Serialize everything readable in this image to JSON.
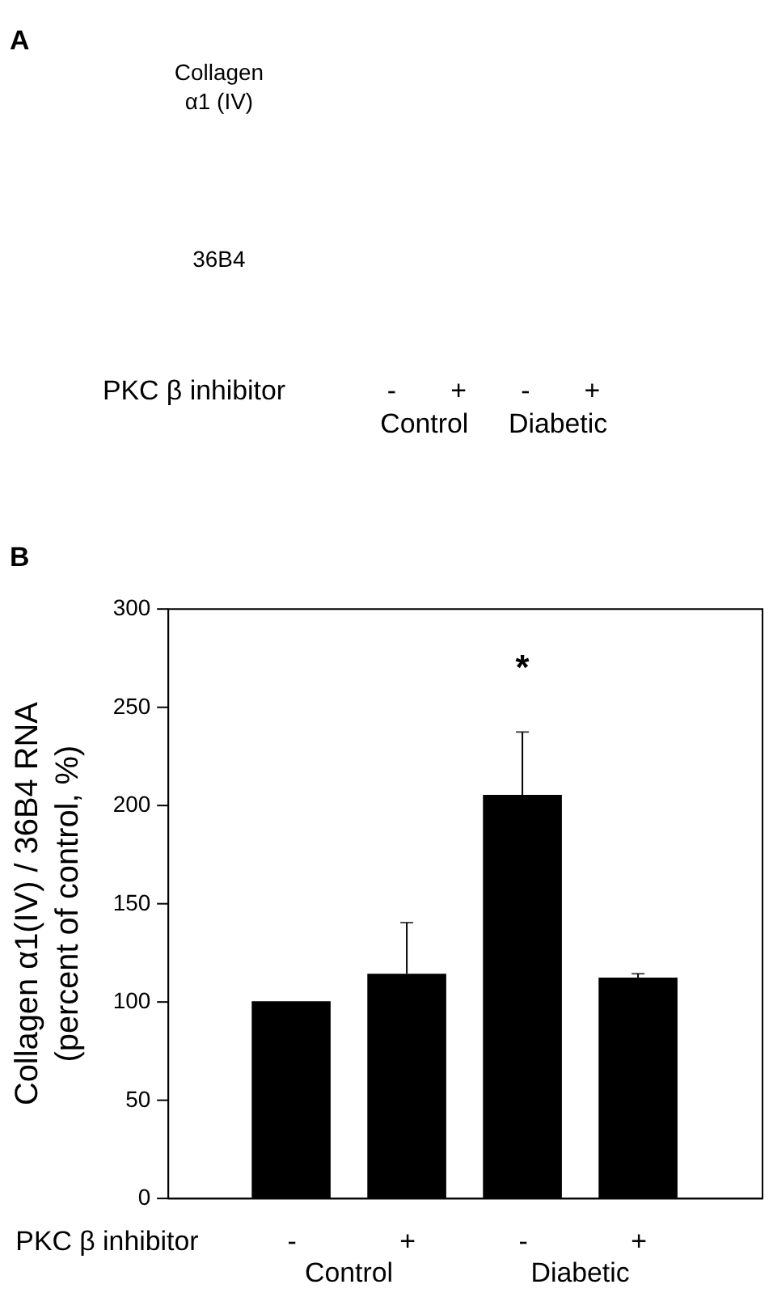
{
  "chart_data": [
    {
      "type": "other",
      "title": "A",
      "y_categories": [
        "Collagen\nα1 (IV)",
        "36B4"
      ],
      "categories": [
        "-",
        "+",
        "-",
        "+"
      ],
      "xlabel": "PKC β inhibitor",
      "annotations": [
        "Control",
        "Diabetic"
      ]
    },
    {
      "type": "bar",
      "title": "B",
      "categories": [
        "-",
        "+",
        "-",
        "+"
      ],
      "values": [
        100,
        114,
        205,
        112
      ],
      "color": "#000000",
      "errors": [
        null,
        [
          114,
          140
        ],
        [
          205,
          237
        ],
        [
          112,
          114
        ]
      ],
      "value_labels": [
        null,
        null,
        "*",
        null
      ],
      "ylabel": "Collagen α1(IV) / 36B4 RNA\n(percent of control, %)",
      "xlabel": "PKC β inhibitor",
      "annotations": [
        "Control",
        "Diabetic"
      ],
      "ylim": [
        0,
        300
      ],
      "yticks": [
        0,
        50,
        100,
        150,
        200,
        250,
        300
      ]
    }
  ]
}
